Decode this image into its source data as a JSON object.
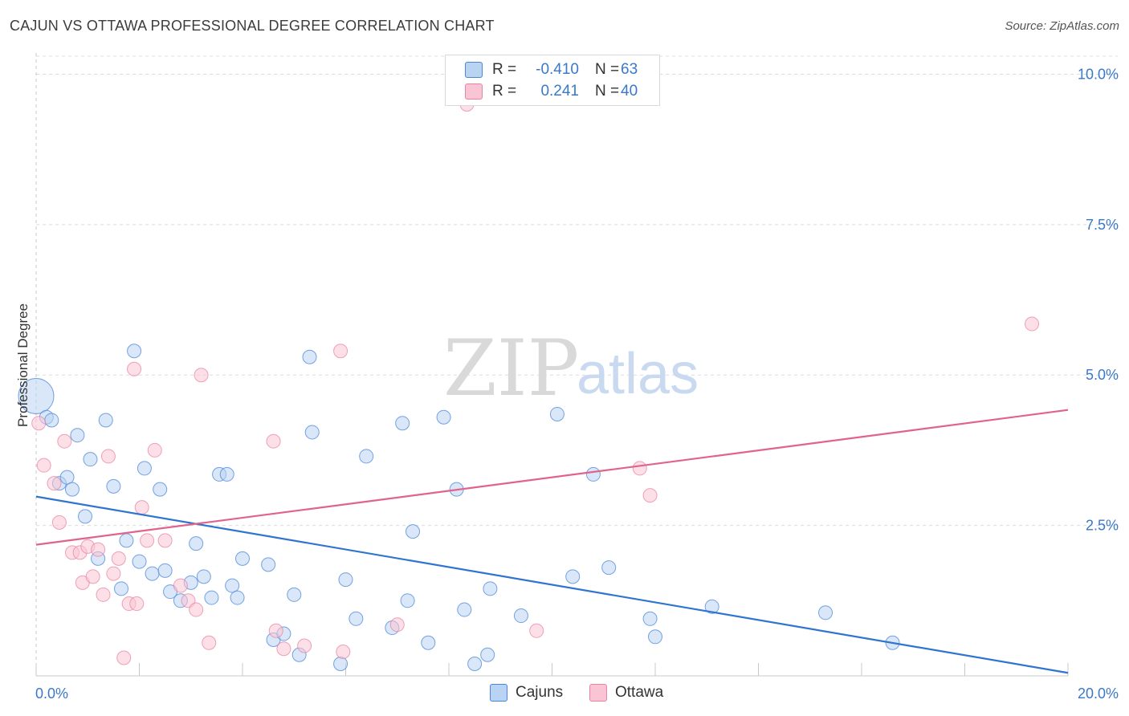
{
  "title": "CAJUN VS OTTAWA PROFESSIONAL DEGREE CORRELATION CHART",
  "source": "Source: ZipAtlas.com",
  "watermark": {
    "zip": "ZIP",
    "atlas": "atlas"
  },
  "legend": {
    "rows": [
      {
        "swatch_color": "#b9d3f2",
        "r_label": "R =",
        "r_value": "-0.410",
        "n_label": "N =",
        "n_value": "63"
      },
      {
        "swatch_color": "#f9c4d3",
        "r_label": "R =",
        "r_value": "0.241",
        "n_label": "N =",
        "n_value": "40"
      }
    ]
  },
  "bottom_legend": [
    {
      "label": "Cajuns",
      "color": "#b9d3f2"
    },
    {
      "label": "Ottawa",
      "color": "#f9c4d3"
    }
  ],
  "chart_data": {
    "type": "scatter",
    "ylabel": "Professional Degree",
    "xlim": [
      0,
      20
    ],
    "ylim": [
      0,
      10.3
    ],
    "x_tick_labels": [
      "0.0%",
      "20.0%"
    ],
    "y_ticks": [
      2.5,
      5.0,
      7.5,
      10.0
    ],
    "y_tick_labels": [
      "2.5%",
      "5.0%",
      "7.5%",
      "10.0%"
    ],
    "grid": true,
    "series": [
      {
        "name": "Cajuns",
        "color": "#4a86d8",
        "fill": "#b9d3f2",
        "trend": {
          "x": [
            0,
            20
          ],
          "y": [
            2.98,
            0.05
          ],
          "color": "#2f74d0"
        },
        "points": [
          [
            0.0,
            4.65
          ],
          [
            0.2,
            4.3
          ],
          [
            0.3,
            4.25
          ],
          [
            0.45,
            3.2
          ],
          [
            0.6,
            3.3
          ],
          [
            0.7,
            3.1
          ],
          [
            0.8,
            4.0
          ],
          [
            0.95,
            2.65
          ],
          [
            1.05,
            3.6
          ],
          [
            1.2,
            1.95
          ],
          [
            1.35,
            4.25
          ],
          [
            1.5,
            3.15
          ],
          [
            1.65,
            1.45
          ],
          [
            1.75,
            2.25
          ],
          [
            1.9,
            5.4
          ],
          [
            2.0,
            1.9
          ],
          [
            2.1,
            3.45
          ],
          [
            2.25,
            1.7
          ],
          [
            2.4,
            3.1
          ],
          [
            2.5,
            1.75
          ],
          [
            2.6,
            1.4
          ],
          [
            2.8,
            1.25
          ],
          [
            3.0,
            1.55
          ],
          [
            3.1,
            2.2
          ],
          [
            3.25,
            1.65
          ],
          [
            3.4,
            1.3
          ],
          [
            3.55,
            3.35
          ],
          [
            3.7,
            3.35
          ],
          [
            3.8,
            1.5
          ],
          [
            3.9,
            1.3
          ],
          [
            4.0,
            1.95
          ],
          [
            4.5,
            1.85
          ],
          [
            4.6,
            0.6
          ],
          [
            4.8,
            0.7
          ],
          [
            5.0,
            1.35
          ],
          [
            5.1,
            0.35
          ],
          [
            5.3,
            5.3
          ],
          [
            5.35,
            4.05
          ],
          [
            5.9,
            0.2
          ],
          [
            6.0,
            1.6
          ],
          [
            6.2,
            0.95
          ],
          [
            6.4,
            3.65
          ],
          [
            6.9,
            0.8
          ],
          [
            7.1,
            4.2
          ],
          [
            7.2,
            1.25
          ],
          [
            7.3,
            2.4
          ],
          [
            7.6,
            0.55
          ],
          [
            7.9,
            4.3
          ],
          [
            8.15,
            3.1
          ],
          [
            8.3,
            1.1
          ],
          [
            8.5,
            0.2
          ],
          [
            8.75,
            0.35
          ],
          [
            8.8,
            1.45
          ],
          [
            9.4,
            1.0
          ],
          [
            10.1,
            4.35
          ],
          [
            10.4,
            1.65
          ],
          [
            10.8,
            3.35
          ],
          [
            11.1,
            1.8
          ],
          [
            11.9,
            0.95
          ],
          [
            12.0,
            0.65
          ],
          [
            13.1,
            1.15
          ],
          [
            15.3,
            1.05
          ],
          [
            16.6,
            0.55
          ]
        ]
      },
      {
        "name": "Ottawa",
        "color": "#e884a3",
        "fill": "#f9c4d3",
        "trend": {
          "x": [
            0,
            20
          ],
          "y": [
            2.18,
            4.42
          ],
          "color": "#e0638c"
        },
        "points": [
          [
            0.05,
            4.2
          ],
          [
            0.15,
            3.5
          ],
          [
            0.35,
            3.2
          ],
          [
            0.45,
            2.55
          ],
          [
            0.55,
            3.9
          ],
          [
            0.7,
            2.05
          ],
          [
            0.85,
            2.05
          ],
          [
            0.9,
            1.55
          ],
          [
            1.0,
            2.15
          ],
          [
            1.1,
            1.65
          ],
          [
            1.2,
            2.1
          ],
          [
            1.3,
            1.35
          ],
          [
            1.4,
            3.65
          ],
          [
            1.5,
            1.7
          ],
          [
            1.6,
            1.95
          ],
          [
            1.7,
            0.3
          ],
          [
            1.8,
            1.2
          ],
          [
            1.9,
            5.1
          ],
          [
            1.95,
            1.2
          ],
          [
            2.05,
            2.8
          ],
          [
            2.15,
            2.25
          ],
          [
            2.3,
            3.75
          ],
          [
            2.5,
            2.25
          ],
          [
            2.8,
            1.5
          ],
          [
            2.95,
            1.25
          ],
          [
            3.1,
            1.1
          ],
          [
            3.2,
            5.0
          ],
          [
            3.35,
            0.55
          ],
          [
            4.6,
            3.9
          ],
          [
            4.65,
            0.75
          ],
          [
            4.8,
            0.45
          ],
          [
            5.2,
            0.5
          ],
          [
            5.9,
            5.4
          ],
          [
            5.95,
            0.4
          ],
          [
            7.0,
            0.85
          ],
          [
            8.35,
            9.5
          ],
          [
            9.7,
            0.75
          ],
          [
            11.7,
            3.45
          ],
          [
            11.9,
            3.0
          ],
          [
            19.3,
            5.85
          ]
        ]
      }
    ]
  }
}
